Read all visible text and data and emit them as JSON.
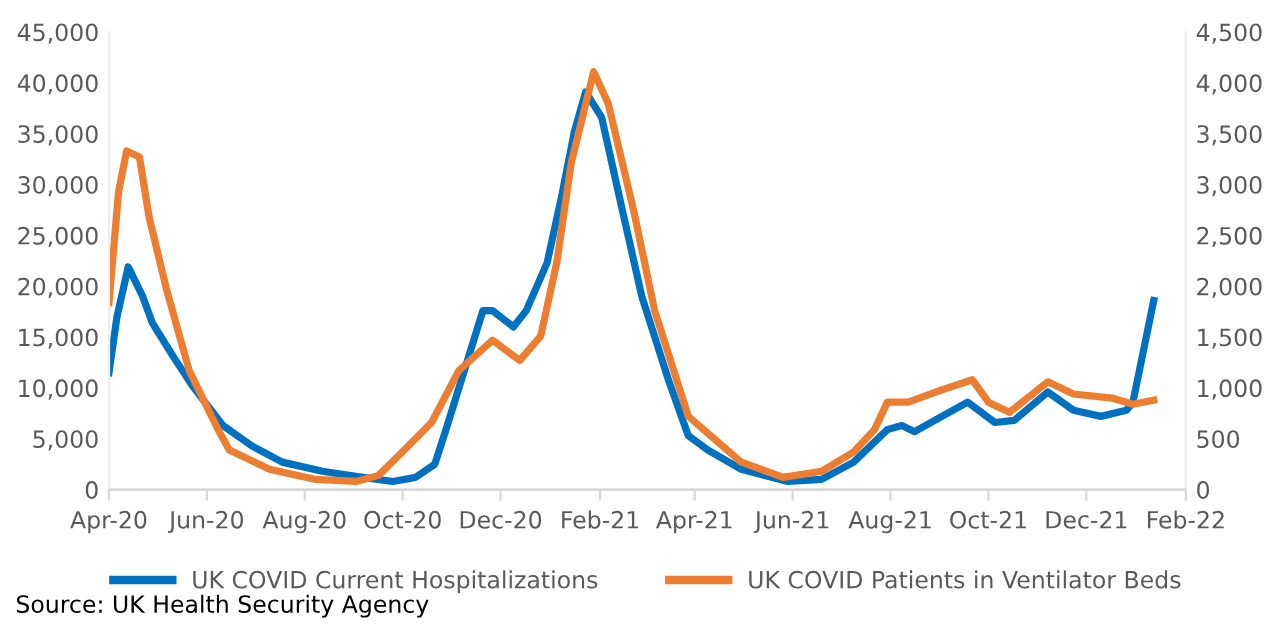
{
  "chart_data": {
    "type": "line",
    "xlim": [
      "2020-04-01",
      "2022-02-01"
    ],
    "xticks": [
      {
        "value": "2020-04-01",
        "label": "Apr-20"
      },
      {
        "value": "2020-06-01",
        "label": "Jun-20"
      },
      {
        "value": "2020-08-01",
        "label": "Aug-20"
      },
      {
        "value": "2020-10-01",
        "label": "Oct-20"
      },
      {
        "value": "2020-12-01",
        "label": "Dec-20"
      },
      {
        "value": "2021-02-01",
        "label": "Feb-21"
      },
      {
        "value": "2021-04-01",
        "label": "Apr-21"
      },
      {
        "value": "2021-06-01",
        "label": "Jun-21"
      },
      {
        "value": "2021-08-01",
        "label": "Aug-21"
      },
      {
        "value": "2021-10-01",
        "label": "Oct-21"
      },
      {
        "value": "2021-12-01",
        "label": "Dec-21"
      },
      {
        "value": "2022-02-01",
        "label": "Feb-22"
      }
    ],
    "ylim": [
      0,
      45000
    ],
    "yticks": [
      0,
      {
        "value": 5000,
        "label": "5,000"
      },
      {
        "value": 10000,
        "label": "10,000"
      },
      {
        "value": 15000,
        "label": "15,000"
      },
      {
        "value": 20000,
        "label": "20,000"
      },
      {
        "value": 25000,
        "label": "25,000"
      },
      {
        "value": 30000,
        "label": "30,000"
      },
      {
        "value": 35000,
        "label": "35,000"
      },
      {
        "value": 40000,
        "label": "40,000"
      },
      {
        "value": 45000,
        "label": "45,000"
      }
    ],
    "y2lim": [
      0,
      4500
    ],
    "y2ticks": [
      0,
      500,
      {
        "value": 1000,
        "label": "1,000"
      },
      {
        "value": 1500,
        "label": "1,500"
      },
      {
        "value": 2000,
        "label": "2,000"
      },
      {
        "value": 2500,
        "label": "2,500"
      },
      {
        "value": 3000,
        "label": "3,000"
      },
      {
        "value": 3500,
        "label": "3,500"
      },
      {
        "value": 4000,
        "label": "4,000"
      },
      {
        "value": 4500,
        "label": "4,500"
      }
    ],
    "grid": false,
    "legend": "bottom",
    "marker": "none",
    "line_style": "solid",
    "series": [
      {
        "name": "UK COVID Current Hospitalizations",
        "color": "#0070c0",
        "x": [
          "2020-04-01",
          "2020-04-06",
          "2020-04-13",
          "2020-04-22",
          "2020-04-28",
          "2020-05-11",
          "2020-05-23",
          "2020-06-11",
          "2020-06-29",
          "2020-07-18",
          "2020-08-12",
          "2020-09-06",
          "2020-09-25",
          "2020-10-09",
          "2020-10-21",
          "2020-10-28",
          "2020-11-20",
          "2020-11-26",
          "2020-12-09",
          "2020-12-17",
          "2020-12-30",
          "2021-01-08",
          "2021-01-16",
          "2021-01-23",
          "2021-02-02",
          "2021-02-15",
          "2021-02-27",
          "2021-03-16",
          "2021-03-28",
          "2021-04-09",
          "2021-04-30",
          "2021-05-29",
          "2021-06-19",
          "2021-07-09",
          "2021-07-30",
          "2021-08-08",
          "2021-08-16",
          "2021-09-02",
          "2021-09-18",
          "2021-10-05",
          "2021-10-17",
          "2021-11-07",
          "2021-11-23",
          "2021-12-10",
          "2021-12-26",
          "2021-12-30",
          "2022-01-12"
        ],
        "values": [
          11500,
          17000,
          21900,
          19000,
          16400,
          13100,
          10200,
          6300,
          4300,
          2700,
          1800,
          1200,
          800,
          1200,
          2500,
          5900,
          17600,
          17600,
          16000,
          17600,
          22300,
          28800,
          35200,
          39100,
          36600,
          27400,
          19000,
          10600,
          5300,
          3900,
          2000,
          800,
          1000,
          2700,
          5900,
          6300,
          5700,
          7200,
          8600,
          6600,
          6800,
          9600,
          7800,
          7200,
          7800,
          8600,
          18600
        ]
      },
      {
        "name": "UK COVID Patients in Ventilator Beds",
        "color": "#ed7d31",
        "axis": "y2",
        "x": [
          "2020-04-01",
          "2020-04-07",
          "2020-04-12",
          "2020-04-20",
          "2020-04-26",
          "2020-05-07",
          "2020-05-21",
          "2020-06-08",
          "2020-06-15",
          "2020-07-10",
          "2020-08-08",
          "2020-09-02",
          "2020-09-16",
          "2020-10-02",
          "2020-10-19",
          "2020-11-05",
          "2020-11-26",
          "2020-12-13",
          "2020-12-26",
          "2021-01-05",
          "2021-01-14",
          "2021-01-28",
          "2021-02-06",
          "2021-02-22",
          "2021-03-07",
          "2021-03-28",
          "2021-04-30",
          "2021-05-26",
          "2021-06-19",
          "2021-07-09",
          "2021-07-22",
          "2021-07-30",
          "2021-08-12",
          "2021-09-02",
          "2021-09-21",
          "2021-10-01",
          "2021-10-14",
          "2021-11-07",
          "2021-11-23",
          "2021-12-17",
          "2021-12-30",
          "2022-01-12"
        ],
        "values": [
          1840,
          2930,
          3330,
          3270,
          2680,
          1960,
          1170,
          590,
          390,
          200,
          100,
          80,
          140,
          390,
          660,
          1170,
          1470,
          1270,
          1510,
          2230,
          3210,
          4110,
          3800,
          2740,
          1760,
          720,
          270,
          120,
          180,
          370,
          590,
          860,
          860,
          980,
          1080,
          860,
          760,
          1060,
          940,
          900,
          840,
          880
        ]
      }
    ],
    "annotations": [
      "Source: UK Health Security Agency"
    ]
  }
}
